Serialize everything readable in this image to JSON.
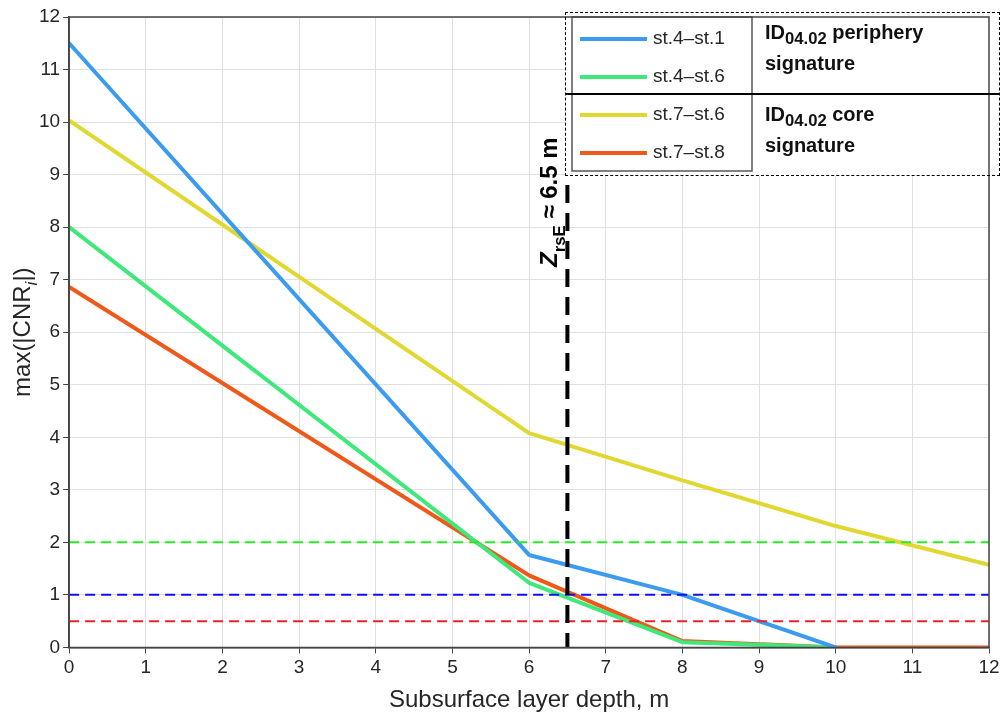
{
  "chart_data": {
    "type": "line",
    "xlabel": "Subsurface layer depth, m",
    "ylabel": "max(|CNR$_{i}$|)",
    "x": [
      0,
      6,
      8,
      10,
      12
    ],
    "series": [
      {
        "name": "st.4–st.1",
        "color": "#3b9bf0",
        "values": [
          11.5,
          1.76,
          1.0,
          0,
          null
        ]
      },
      {
        "name": "st.4–st.6",
        "color": "#3fe87a",
        "values": [
          8.0,
          1.23,
          0.1,
          0,
          null
        ]
      },
      {
        "name": "st.7–st.6",
        "color": "#e0d830",
        "values": [
          10.03,
          4.08,
          3.18,
          2.31,
          1.57
        ]
      },
      {
        "name": "st.7–st.8",
        "color": "#f0581a",
        "values": [
          6.86,
          1.37,
          0.12,
          0,
          0
        ]
      }
    ],
    "xlim": [
      0,
      12
    ],
    "xticks": [
      0,
      1,
      2,
      3,
      4,
      5,
      6,
      7,
      8,
      9,
      10,
      11,
      12
    ],
    "ylim": [
      0,
      12
    ],
    "yticks": [
      0,
      1,
      2,
      3,
      4,
      5,
      6,
      7,
      8,
      9,
      10,
      11,
      12
    ],
    "ref_lines": [
      {
        "axis": "y",
        "value": 2,
        "color": "#22ee22",
        "line_style": "dashed"
      },
      {
        "axis": "y",
        "value": 1,
        "color": "#1010f0",
        "line_style": "dashed"
      },
      {
        "axis": "y",
        "value": 0.5,
        "color": "#f02020",
        "line_style": "dashed"
      },
      {
        "axis": "x",
        "value": 6.5,
        "label": "Z$_{rsE}$ ≈ 6.5 m",
        "color": "#000000",
        "line_style": "dashed"
      }
    ],
    "annotations": [
      "ID$_{04.02}$ periphery signature",
      "ID$_{04.02}$ core signature"
    ],
    "grid": true,
    "legend": "top right",
    "marker": "none",
    "line_style": "solid"
  }
}
